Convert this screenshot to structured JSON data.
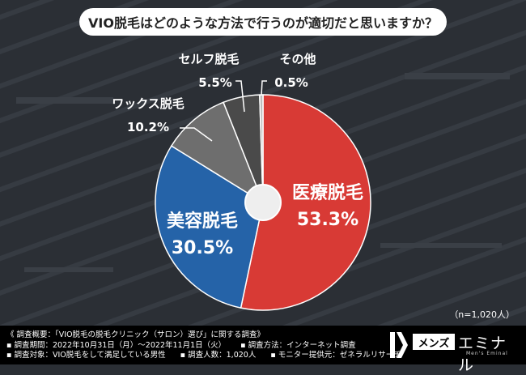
{
  "title": "VIO脱毛はどのような方法で行うのが適切だと思いますか？",
  "sample_size": "（n=1,020人）",
  "chart_data": {
    "type": "pie",
    "title": "VIO脱毛はどのような方法で行うのが適切だと思いますか？",
    "slices": [
      {
        "label": "医療脱毛",
        "value": 53.3,
        "value_label": "53.3%",
        "color": "#d83a35"
      },
      {
        "label": "美容脱毛",
        "value": 30.5,
        "value_label": "30.5%",
        "color": "#2563a8"
      },
      {
        "label": "ワックス脱毛",
        "value": 10.2,
        "value_label": "10.2%",
        "color": "#6e6e6e"
      },
      {
        "label": "セルフ脱毛",
        "value": 5.5,
        "value_label": "5.5%",
        "color": "#4a4a4a"
      },
      {
        "label": "その他",
        "value": 0.5,
        "value_label": "0.5%",
        "color": "#bdbdbd"
      }
    ],
    "start": "top",
    "direction": "clockwise",
    "donut_hole": true,
    "legend": "none"
  },
  "footer": {
    "survey_title": "《 調査概要：「VIO脱毛の脱毛クリニック（サロン）選び」に関する調査》",
    "period": "▪ 調査期間：2022年10月31日（月）〜2022年11月1日（火）",
    "method": "▪ 調査方法：インターネット調査",
    "target": "▪ 調査対象：VIO脱毛をして満足している男性",
    "count": "▪ 調査人数：1,020人",
    "provider": "▪ モニター提供元：ゼネラルリサーチ"
  },
  "logo": {
    "mens": "メンズ",
    "brand": "エミナル",
    "sub": "Men's Eminal"
  }
}
